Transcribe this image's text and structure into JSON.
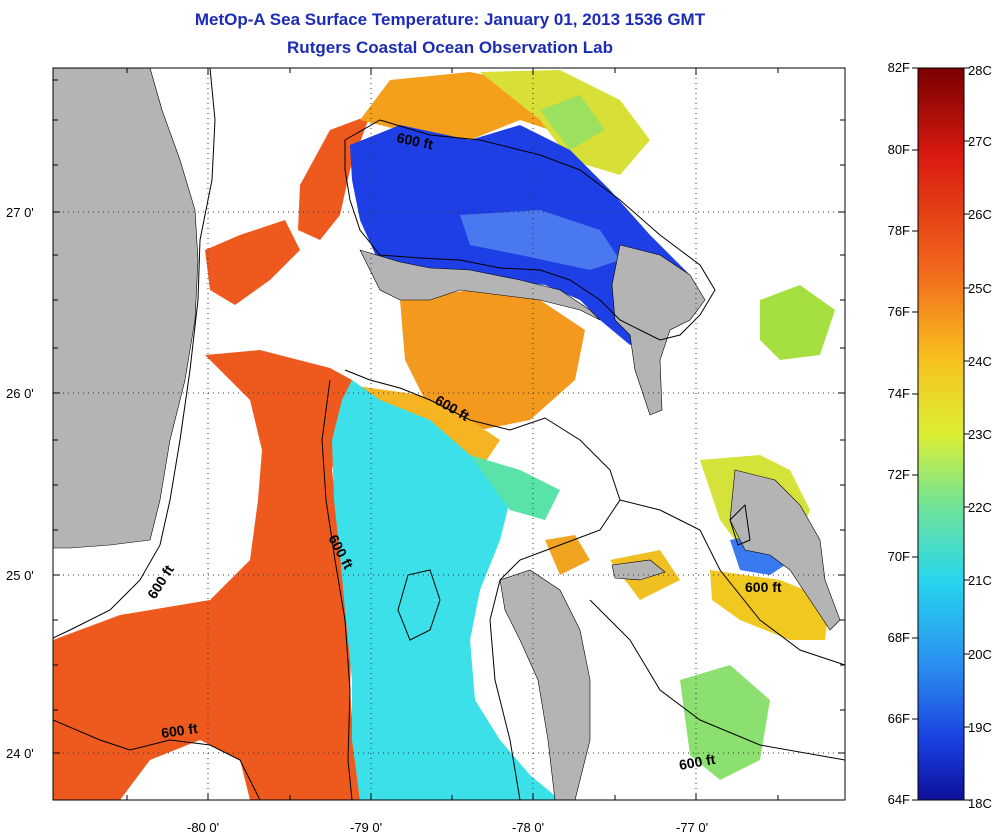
{
  "title": "MetOp-A Sea Surface Temperature:  January 01, 2013 1536 GMT",
  "subtitle": "Rutgers Coastal Ocean Observation Lab",
  "map": {
    "latitude_labels": [
      "27 0'",
      "26 0'",
      "25 0'",
      "24 0'"
    ],
    "longitude_labels": [
      "-80 0'",
      "-79 0'",
      "-78 0'",
      "-77 0'"
    ],
    "contour_label": "600 ft",
    "colors": {
      "land": "#b4b4b4",
      "no_data": "#ffffff",
      "warm_current": "#ee5a1e",
      "cool_water": "#3ce0e8",
      "cold_water": "#1e3ee6",
      "mid_water": "#f4b01c",
      "green_water": "#bce040"
    }
  },
  "colorbar": {
    "fahrenheit_labels": [
      "82F",
      "80F",
      "78F",
      "76F",
      "74F",
      "72F",
      "70F",
      "68F",
      "66F",
      "64F"
    ],
    "celsius_labels": [
      "28C",
      "27C",
      "26C",
      "25C",
      "24C",
      "23C",
      "22C",
      "21C",
      "20C",
      "19C",
      "18C"
    ]
  }
}
